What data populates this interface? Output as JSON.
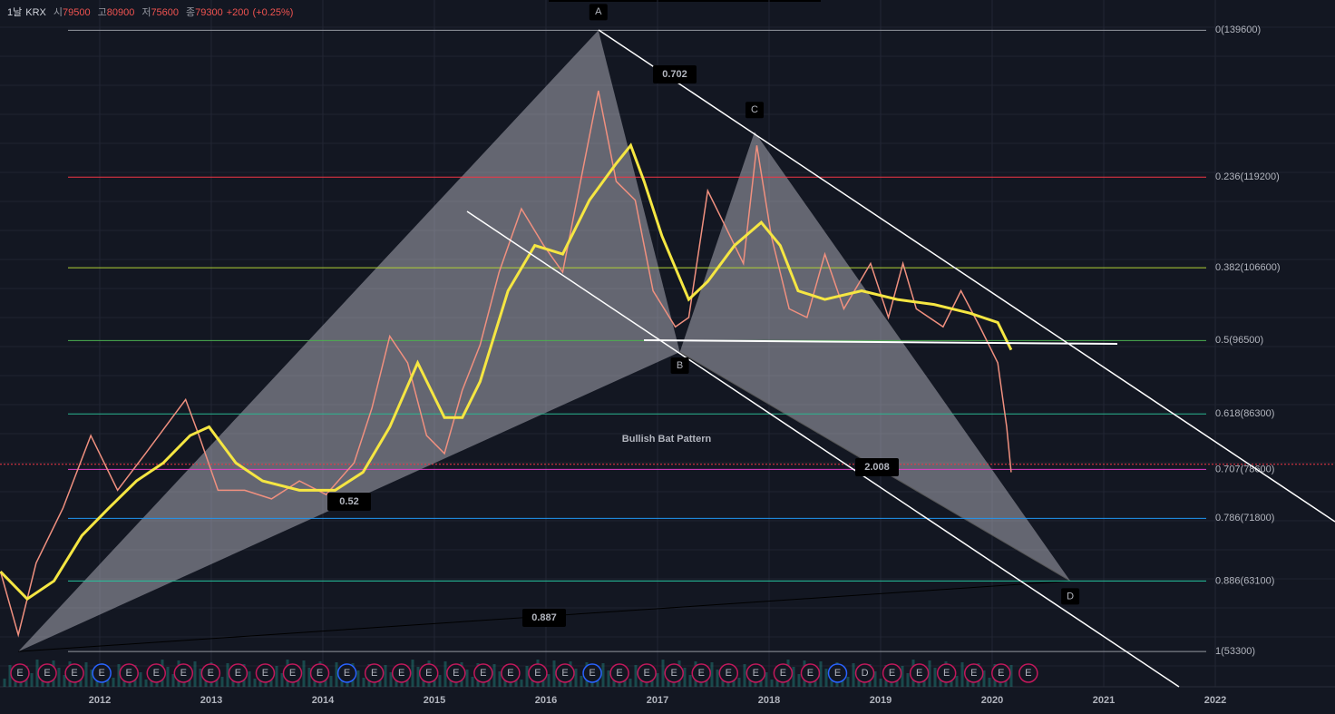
{
  "chart_data": {
    "type": "line",
    "header": {
      "interval": "1날",
      "exchange": "KRX",
      "open_label": "시",
      "open": 79500,
      "high_label": "고",
      "high": 80900,
      "low_label": "저",
      "low": 75600,
      "close_label": "종",
      "close": 79300,
      "change": "+200",
      "change_pct": "(+0.25%)"
    },
    "title": "Bullish Bat Pattern",
    "xlim": [
      2011.106,
      2023.073
    ],
    "ylim": [
      48400,
      143800
    ],
    "xticks": [
      2012,
      2013,
      2014,
      2015,
      2016,
      2017,
      2018,
      2019,
      2020,
      2021,
      2022
    ],
    "series": [
      {
        "color": "#f0907f",
        "x": [
          2011.11,
          2011.27,
          2011.43,
          2011.67,
          2011.92,
          2012.16,
          2012.41,
          2012.65,
          2012.77,
          2012.89,
          2013.06,
          2013.3,
          2013.54,
          2013.79,
          2014.03,
          2014.28,
          2014.44,
          2014.6,
          2014.76,
          2014.93,
          2015.09,
          2015.25,
          2015.41,
          2015.58,
          2015.78,
          2015.98,
          2016.15,
          2016.31,
          2016.47,
          2016.63,
          2016.8,
          2016.96,
          2017.16,
          2017.28,
          2017.45,
          2017.61,
          2017.77,
          2017.89,
          2018.02,
          2018.18,
          2018.34,
          2018.5,
          2018.67,
          2018.91,
          2019.07,
          2019.2,
          2019.32,
          2019.56,
          2019.72,
          2019.89,
          2020.05,
          2020.13,
          2020.17
        ],
        "values": [
          64400,
          55600,
          65600,
          73200,
          83300,
          75700,
          80800,
          85800,
          88300,
          83300,
          75700,
          75700,
          74500,
          77000,
          75100,
          79500,
          87100,
          97100,
          93400,
          83300,
          80800,
          89600,
          95900,
          106000,
          114800,
          109700,
          106000,
          118600,
          131200,
          118600,
          116000,
          103400,
          98400,
          99700,
          117300,
          112300,
          107200,
          123600,
          111000,
          100900,
          99700,
          108500,
          100900,
          107200,
          99700,
          107200,
          100900,
          98400,
          103400,
          98400,
          93400,
          84500,
          78200
        ]
      },
      {
        "color": "#f5e642",
        "x": [
          2011.11,
          2011.35,
          2011.59,
          2011.84,
          2012.08,
          2012.33,
          2012.57,
          2012.81,
          2012.98,
          2013.22,
          2013.46,
          2013.79,
          2014.11,
          2014.36,
          2014.6,
          2014.85,
          2015.09,
          2015.25,
          2015.41,
          2015.66,
          2015.9,
          2016.15,
          2016.39,
          2016.63,
          2016.76,
          2016.88,
          2017.04,
          2017.28,
          2017.45,
          2017.69,
          2017.93,
          2018.1,
          2018.26,
          2018.5,
          2018.83,
          2019.15,
          2019.48,
          2019.8,
          2020.05,
          2020.17
        ],
        "values": [
          64400,
          60600,
          63100,
          69400,
          73200,
          77000,
          79500,
          83300,
          84500,
          79500,
          77000,
          75700,
          75700,
          78200,
          84500,
          93400,
          85800,
          85800,
          90800,
          103400,
          109700,
          108500,
          116000,
          121100,
          123600,
          118600,
          111000,
          102200,
          104700,
          109700,
          112900,
          109700,
          103400,
          102200,
          103400,
          102200,
          101500,
          100300,
          99000,
          95200
        ]
      }
    ],
    "fib_levels": [
      {
        "label": "0(139600)",
        "value": 139600,
        "color": "#9598a1"
      },
      {
        "label": "0.236(119200)",
        "value": 119200,
        "color": "#f23645"
      },
      {
        "label": "0.382(106600)",
        "value": 106600,
        "color": "#b2d235"
      },
      {
        "label": "0.5(96500)",
        "value": 96500,
        "color": "#4caf50"
      },
      {
        "label": "0.618(86300)",
        "value": 86300,
        "color": "#2bb58f"
      },
      {
        "label": "0.707(78600)",
        "value": 78600,
        "color": "#e040c8"
      },
      {
        "label": "0.786(71800)",
        "value": 71800,
        "color": "#2196f3"
      },
      {
        "label": "0.886(63100)",
        "value": 63100,
        "color": "#26c6a0"
      },
      {
        "label": "1(53300)",
        "value": 53300,
        "color": "#9598a1"
      }
    ],
    "pattern_points": [
      {
        "x": 2011.27,
        "y": 53300
      },
      {
        "label": "A",
        "x": 2016.47,
        "y": 139600
      },
      {
        "label": "B",
        "x": 2017.2,
        "y": 94900
      },
      {
        "label": "C",
        "x": 2017.87,
        "y": 125500
      },
      {
        "label": "D",
        "x": 2020.7,
        "y": 63100
      }
    ],
    "ratios": [
      "0.702",
      "0.52",
      "2.008",
      "0.887"
    ],
    "events": [
      "E",
      "E",
      "E",
      "E",
      "E",
      "E",
      "E",
      "E",
      "E",
      "E",
      "E",
      "E",
      "E",
      "E",
      "E",
      "E",
      "E",
      "E",
      "E",
      "E",
      "E",
      "E",
      "E",
      "E",
      "E",
      "E",
      "E",
      "E",
      "E",
      "E",
      "E",
      "D",
      "E",
      "E",
      "E",
      "E",
      "E",
      "E"
    ]
  }
}
